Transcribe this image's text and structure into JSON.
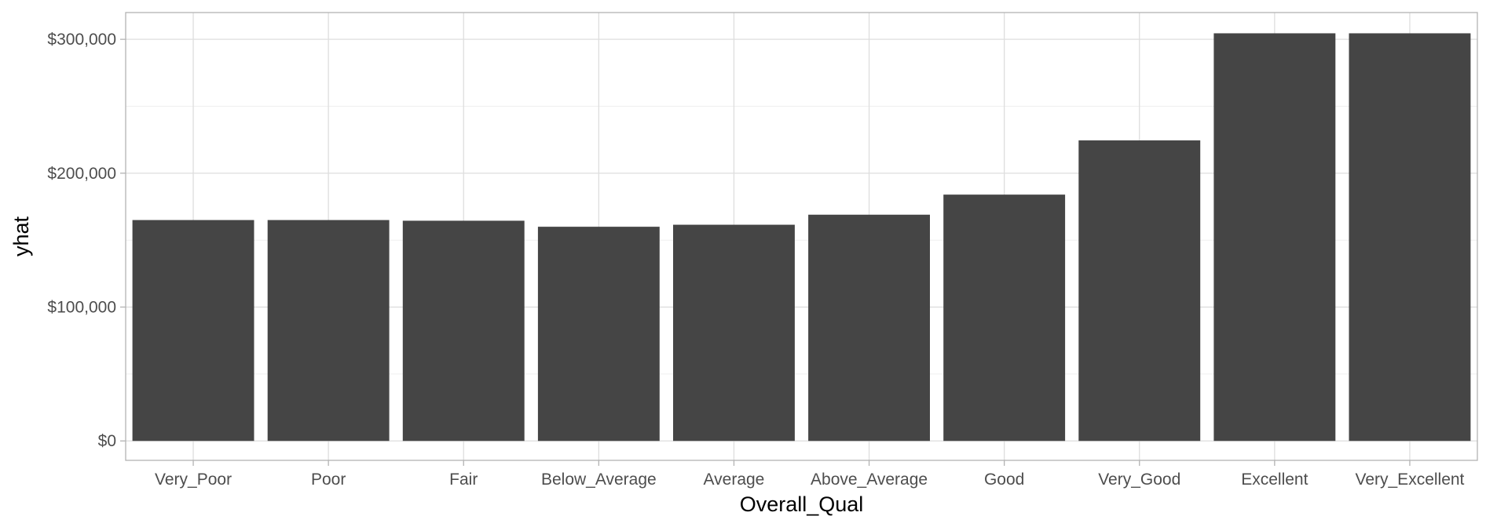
{
  "chart_data": {
    "type": "bar",
    "title": "",
    "xlabel": "Overall_Qual",
    "ylabel": "yhat",
    "categories": [
      "Very_Poor",
      "Poor",
      "Fair",
      "Below_Average",
      "Average",
      "Above_Average",
      "Good",
      "Very_Good",
      "Excellent",
      "Very_Excellent"
    ],
    "values": [
      165000,
      165000,
      164500,
      160000,
      161500,
      169000,
      184000,
      224500,
      304500,
      304500
    ],
    "ylim": [
      -14500,
      320000
    ],
    "yticks": [
      0,
      100000,
      200000,
      300000
    ],
    "ytick_labels": [
      "$0",
      "$100,000",
      "$200,000",
      "$300,000"
    ],
    "grid": true,
    "legend": "none",
    "bar_color": "#454545"
  }
}
